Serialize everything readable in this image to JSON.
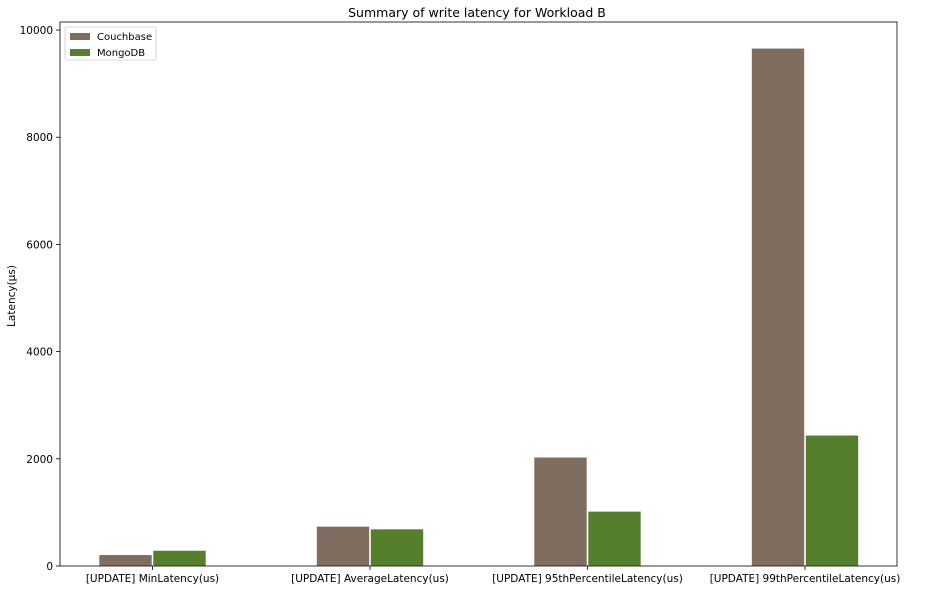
{
  "chart_data": {
    "type": "bar",
    "title": "Summary of write latency for Workload B",
    "xlabel": "",
    "ylabel": "Latency(µs)",
    "categories": [
      "[UPDATE] MinLatency(us)",
      "[UPDATE] AverageLatency(us)",
      "[UPDATE] 95thPercentileLatency(us)",
      "[UPDATE] 99thPercentileLatency(us)"
    ],
    "series": [
      {
        "name": "Couchbase",
        "color": "#7f6d5f",
        "values": [
          210,
          740,
          2030,
          9660
        ]
      },
      {
        "name": "MongoDB",
        "color": "#557f2d",
        "values": [
          290,
          690,
          1020,
          2440
        ]
      }
    ],
    "ylim": [
      0,
      10150
    ],
    "yticks": [
      0,
      2000,
      4000,
      6000,
      8000,
      10000
    ],
    "grid": false,
    "legend_position": "top-left"
  }
}
